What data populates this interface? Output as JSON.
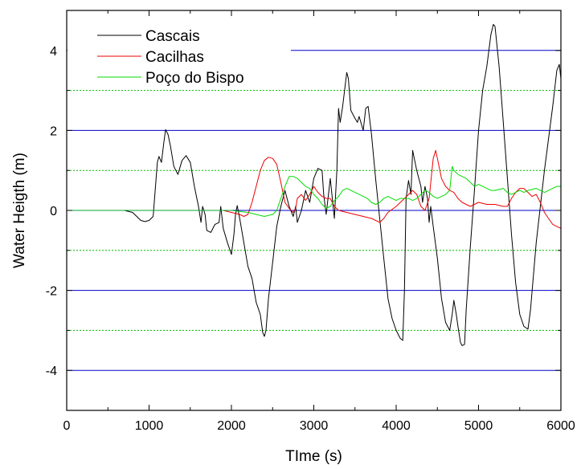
{
  "chart_data": {
    "type": "line",
    "title": "",
    "xlabel": "TIme (s)",
    "ylabel": "Water Heigth (m)",
    "xlim": [
      0,
      6000
    ],
    "ylim": [
      -5,
      5
    ],
    "x_ticks": [
      0,
      1000,
      2000,
      3000,
      4000,
      5000,
      6000
    ],
    "y_ticks": [
      -4,
      -2,
      0,
      2,
      4
    ],
    "major_grid_values": [
      -4,
      -2,
      0,
      2,
      4
    ],
    "minor_grid_values": [
      -3,
      -1,
      1,
      3
    ],
    "major_grid_color": "#0000cc",
    "minor_grid_color": "#00bb00",
    "legend_position": "top-left",
    "series": [
      {
        "name": "Cascais",
        "color": "#000000",
        "points": [
          [
            700,
            0
          ],
          [
            800,
            -0.05
          ],
          [
            900,
            -0.25
          ],
          [
            950,
            -0.28
          ],
          [
            1000,
            -0.25
          ],
          [
            1050,
            -0.15
          ],
          [
            1100,
            1.2
          ],
          [
            1120,
            1.35
          ],
          [
            1150,
            1.2
          ],
          [
            1180,
            1.7
          ],
          [
            1200,
            2.02
          ],
          [
            1230,
            1.9
          ],
          [
            1260,
            1.6
          ],
          [
            1300,
            1.1
          ],
          [
            1350,
            0.9
          ],
          [
            1400,
            1.25
          ],
          [
            1450,
            1.37
          ],
          [
            1500,
            1.2
          ],
          [
            1550,
            0.6
          ],
          [
            1600,
            0.1
          ],
          [
            1630,
            -0.3
          ],
          [
            1650,
            0.1
          ],
          [
            1680,
            -0.1
          ],
          [
            1700,
            -0.5
          ],
          [
            1750,
            -0.55
          ],
          [
            1800,
            -0.35
          ],
          [
            1850,
            -0.3
          ],
          [
            1870,
            0.1
          ],
          [
            1900,
            -0.45
          ],
          [
            1950,
            -0.8
          ],
          [
            2000,
            -1.1
          ],
          [
            2030,
            -0.6
          ],
          [
            2050,
            -0.1
          ],
          [
            2070,
            0.12
          ],
          [
            2100,
            -0.2
          ],
          [
            2150,
            -0.8
          ],
          [
            2200,
            -1.4
          ],
          [
            2250,
            -1.7
          ],
          [
            2300,
            -2.3
          ],
          [
            2350,
            -2.6
          ],
          [
            2380,
            -3.05
          ],
          [
            2400,
            -3.15
          ],
          [
            2420,
            -3.0
          ],
          [
            2450,
            -2.2
          ],
          [
            2500,
            -1.3
          ],
          [
            2550,
            -0.4
          ],
          [
            2600,
            0.1
          ],
          [
            2650,
            0.5
          ],
          [
            2700,
            0.1
          ],
          [
            2750,
            -0.15
          ],
          [
            2780,
            0.1
          ],
          [
            2800,
            -0.3
          ],
          [
            2850,
            0.0
          ],
          [
            2900,
            0.5
          ],
          [
            2950,
            0.2
          ],
          [
            3000,
            0.8
          ],
          [
            3050,
            1.05
          ],
          [
            3100,
            1.0
          ],
          [
            3120,
            0.4
          ],
          [
            3150,
            -0.1
          ],
          [
            3200,
            0.8
          ],
          [
            3250,
            -0.2
          ],
          [
            3280,
            1.0
          ],
          [
            3300,
            2.55
          ],
          [
            3320,
            2.2
          ],
          [
            3350,
            2.6
          ],
          [
            3380,
            3.1
          ],
          [
            3400,
            3.45
          ],
          [
            3420,
            3.3
          ],
          [
            3450,
            2.5
          ],
          [
            3500,
            2.3
          ],
          [
            3530,
            2.2
          ],
          [
            3550,
            2.35
          ],
          [
            3600,
            2.0
          ],
          [
            3630,
            2.55
          ],
          [
            3660,
            2.6
          ],
          [
            3700,
            1.9
          ],
          [
            3750,
            0.8
          ],
          [
            3800,
            -0.2
          ],
          [
            3850,
            -1.2
          ],
          [
            3900,
            -2.2
          ],
          [
            3950,
            -2.7
          ],
          [
            4000,
            -3.0
          ],
          [
            4050,
            -3.2
          ],
          [
            4080,
            -3.25
          ],
          [
            4100,
            -2.0
          ],
          [
            4120,
            0.3
          ],
          [
            4150,
            0.75
          ],
          [
            4180,
            0.4
          ],
          [
            4200,
            1.5
          ],
          [
            4250,
            1.0
          ],
          [
            4300,
            0.6
          ],
          [
            4320,
            0.2
          ],
          [
            4350,
            0.6
          ],
          [
            4380,
            0.3
          ],
          [
            4400,
            -0.3
          ],
          [
            4420,
            0.1
          ],
          [
            4450,
            -0.4
          ],
          [
            4500,
            -1.2
          ],
          [
            4550,
            -2.2
          ],
          [
            4600,
            -2.8
          ],
          [
            4650,
            -3.0
          ],
          [
            4680,
            -2.6
          ],
          [
            4700,
            -2.25
          ],
          [
            4730,
            -2.6
          ],
          [
            4750,
            -2.9
          ],
          [
            4780,
            -3.3
          ],
          [
            4800,
            -3.38
          ],
          [
            4830,
            -3.35
          ],
          [
            4850,
            -2.5
          ],
          [
            4900,
            -0.9
          ],
          [
            4950,
            0.5
          ],
          [
            5000,
            2.0
          ],
          [
            5050,
            3.0
          ],
          [
            5100,
            3.6
          ],
          [
            5150,
            4.4
          ],
          [
            5180,
            4.65
          ],
          [
            5200,
            4.6
          ],
          [
            5250,
            3.6
          ],
          [
            5300,
            2.2
          ],
          [
            5350,
            0.8
          ],
          [
            5400,
            -0.6
          ],
          [
            5450,
            -1.8
          ],
          [
            5500,
            -2.6
          ],
          [
            5550,
            -2.9
          ],
          [
            5600,
            -2.97
          ],
          [
            5630,
            -2.5
          ],
          [
            5700,
            -0.8
          ],
          [
            5800,
            1.0
          ],
          [
            5900,
            2.6
          ],
          [
            5950,
            3.5
          ],
          [
            5980,
            3.65
          ],
          [
            6000,
            3.3
          ]
        ]
      },
      {
        "name": "Cacilhas",
        "color": "#ee0000",
        "points": [
          [
            1500,
            0
          ],
          [
            1700,
            0
          ],
          [
            1900,
            0
          ],
          [
            2000,
            -0.05
          ],
          [
            2100,
            -0.1
          ],
          [
            2150,
            -0.15
          ],
          [
            2200,
            -0.1
          ],
          [
            2250,
            0.2
          ],
          [
            2300,
            0.6
          ],
          [
            2350,
            1.0
          ],
          [
            2400,
            1.25
          ],
          [
            2450,
            1.33
          ],
          [
            2500,
            1.3
          ],
          [
            2550,
            1.15
          ],
          [
            2600,
            0.7
          ],
          [
            2650,
            0.2
          ],
          [
            2700,
            0.05
          ],
          [
            2750,
            -0.05
          ],
          [
            2780,
            0.05
          ],
          [
            2800,
            0.3
          ],
          [
            2850,
            0.4
          ],
          [
            2900,
            0.25
          ],
          [
            2950,
            0.4
          ],
          [
            3000,
            0.6
          ],
          [
            3050,
            0.45
          ],
          [
            3100,
            0.35
          ],
          [
            3150,
            0.3
          ],
          [
            3200,
            0.3
          ],
          [
            3250,
            0.1
          ],
          [
            3300,
            0.0
          ],
          [
            3400,
            -0.05
          ],
          [
            3500,
            -0.1
          ],
          [
            3600,
            -0.15
          ],
          [
            3700,
            -0.2
          ],
          [
            3800,
            -0.3
          ],
          [
            3850,
            -0.2
          ],
          [
            3900,
            -0.05
          ],
          [
            4000,
            0.1
          ],
          [
            4100,
            0.3
          ],
          [
            4200,
            0.5
          ],
          [
            4250,
            0.4
          ],
          [
            4300,
            0.1
          ],
          [
            4350,
            0.0
          ],
          [
            4400,
            0.3
          ],
          [
            4450,
            1.3
          ],
          [
            4480,
            1.5
          ],
          [
            4500,
            1.3
          ],
          [
            4550,
            0.8
          ],
          [
            4600,
            0.6
          ],
          [
            4650,
            0.5
          ],
          [
            4700,
            0.45
          ],
          [
            4750,
            0.3
          ],
          [
            4800,
            0.2
          ],
          [
            4850,
            0.15
          ],
          [
            4900,
            0.1
          ],
          [
            4950,
            0.15
          ],
          [
            5000,
            0.2
          ],
          [
            5100,
            0.15
          ],
          [
            5200,
            0.15
          ],
          [
            5300,
            0.1
          ],
          [
            5350,
            0.1
          ],
          [
            5400,
            0.3
          ],
          [
            5450,
            0.45
          ],
          [
            5500,
            0.55
          ],
          [
            5550,
            0.55
          ],
          [
            5600,
            0.45
          ],
          [
            5650,
            0.35
          ],
          [
            5700,
            0.4
          ],
          [
            5750,
            0.2
          ],
          [
            5800,
            -0.05
          ],
          [
            5850,
            -0.2
          ],
          [
            5900,
            -0.35
          ],
          [
            5950,
            -0.4
          ],
          [
            6000,
            -0.45
          ]
        ]
      },
      {
        "name": "Poço do Bispo",
        "color": "#00dd00",
        "points": [
          [
            0,
            0
          ],
          [
            1000,
            0
          ],
          [
            2000,
            0
          ],
          [
            2200,
            -0.05
          ],
          [
            2300,
            -0.1
          ],
          [
            2400,
            -0.15
          ],
          [
            2500,
            -0.1
          ],
          [
            2550,
            0.0
          ],
          [
            2600,
            0.3
          ],
          [
            2650,
            0.6
          ],
          [
            2700,
            0.85
          ],
          [
            2750,
            0.85
          ],
          [
            2800,
            0.8
          ],
          [
            2850,
            0.7
          ],
          [
            2900,
            0.6
          ],
          [
            2950,
            0.55
          ],
          [
            3000,
            0.4
          ],
          [
            3050,
            0.3
          ],
          [
            3100,
            0.15
          ],
          [
            3150,
            0.05
          ],
          [
            3200,
            0.1
          ],
          [
            3250,
            0.25
          ],
          [
            3300,
            0.35
          ],
          [
            3350,
            0.5
          ],
          [
            3400,
            0.55
          ],
          [
            3450,
            0.5
          ],
          [
            3500,
            0.45
          ],
          [
            3550,
            0.4
          ],
          [
            3600,
            0.35
          ],
          [
            3650,
            0.3
          ],
          [
            3700,
            0.2
          ],
          [
            3750,
            0.15
          ],
          [
            3800,
            0.2
          ],
          [
            3850,
            0.3
          ],
          [
            3900,
            0.35
          ],
          [
            3950,
            0.3
          ],
          [
            4000,
            0.25
          ],
          [
            4050,
            0.3
          ],
          [
            4100,
            0.3
          ],
          [
            4150,
            0.3
          ],
          [
            4200,
            0.25
          ],
          [
            4250,
            0.3
          ],
          [
            4300,
            0.4
          ],
          [
            4350,
            0.5
          ],
          [
            4400,
            0.45
          ],
          [
            4450,
            0.35
          ],
          [
            4500,
            0.3
          ],
          [
            4550,
            0.35
          ],
          [
            4600,
            0.4
          ],
          [
            4650,
            0.5
          ],
          [
            4680,
            1.1
          ],
          [
            4700,
            1.0
          ],
          [
            4750,
            0.9
          ],
          [
            4800,
            0.85
          ],
          [
            4850,
            0.8
          ],
          [
            4900,
            0.7
          ],
          [
            4950,
            0.6
          ],
          [
            5000,
            0.65
          ],
          [
            5050,
            0.6
          ],
          [
            5100,
            0.55
          ],
          [
            5150,
            0.5
          ],
          [
            5200,
            0.5
          ],
          [
            5300,
            0.55
          ],
          [
            5350,
            0.45
          ],
          [
            5400,
            0.4
          ],
          [
            5450,
            0.45
          ],
          [
            5500,
            0.5
          ],
          [
            5550,
            0.45
          ],
          [
            5600,
            0.5
          ],
          [
            5700,
            0.55
          ],
          [
            5800,
            0.45
          ],
          [
            5850,
            0.5
          ],
          [
            5900,
            0.55
          ],
          [
            5950,
            0.6
          ],
          [
            6000,
            0.6
          ]
        ]
      }
    ]
  }
}
